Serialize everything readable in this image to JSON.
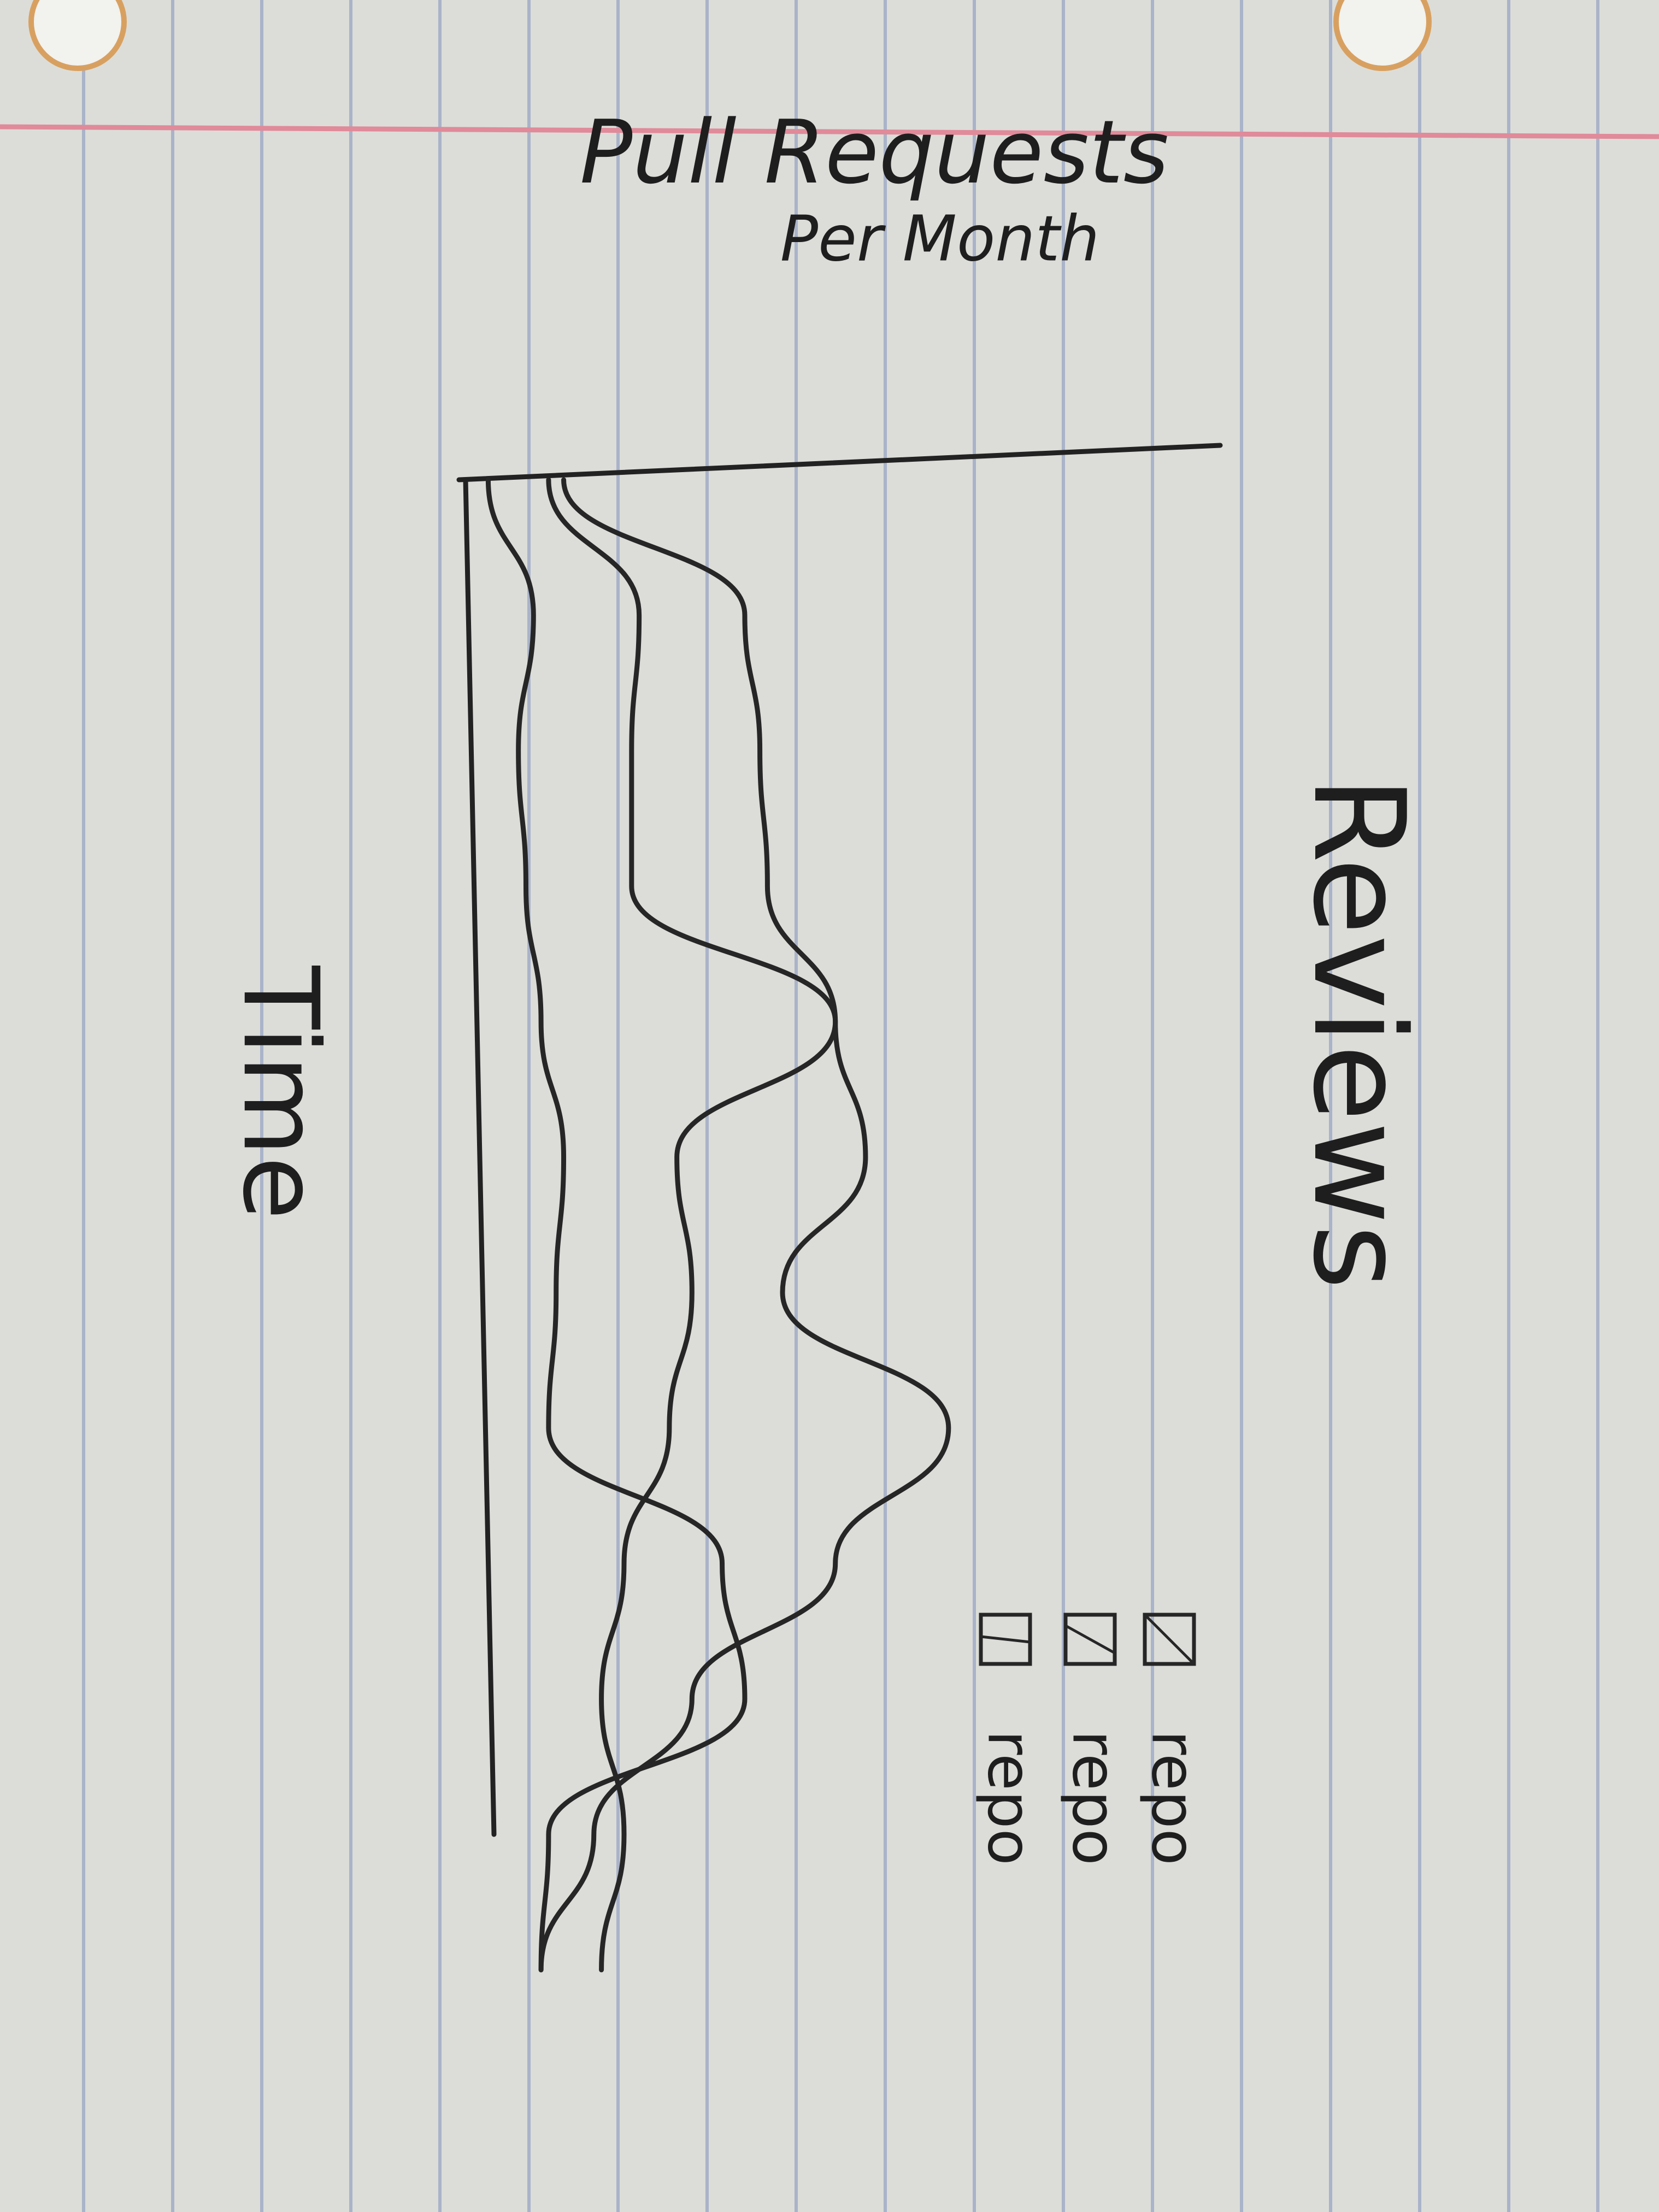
{
  "chart_data": {
    "type": "line",
    "title": "Pull Requests",
    "subtitle": "Per Month",
    "x_label": "Time",
    "y_label": "Reviews",
    "x": [
      0,
      1,
      2,
      3,
      4,
      5,
      6,
      7,
      8,
      9,
      10,
      11
    ],
    "xlim": [
      0,
      10
    ],
    "ylim": [
      0,
      10
    ],
    "series": [
      {
        "name": "repo",
        "color": "#262626",
        "values": [
          0.3,
          0.9,
          0.7,
          0.8,
          1.0,
          1.3,
          1.2,
          1.1,
          3.4,
          3.7,
          1.1,
          1.0
        ]
      },
      {
        "name": "repo",
        "color": "#262626",
        "values": [
          1.1,
          2.3,
          2.2,
          2.2,
          4.9,
          2.8,
          3.0,
          2.7,
          2.1,
          1.8,
          2.1,
          1.8
        ]
      },
      {
        "name": "repo",
        "color": "#262626",
        "values": [
          1.3,
          3.7,
          3.9,
          4.0,
          4.9,
          5.3,
          4.2,
          6.4,
          4.9,
          3.0,
          1.7,
          1.0
        ]
      }
    ]
  }
}
